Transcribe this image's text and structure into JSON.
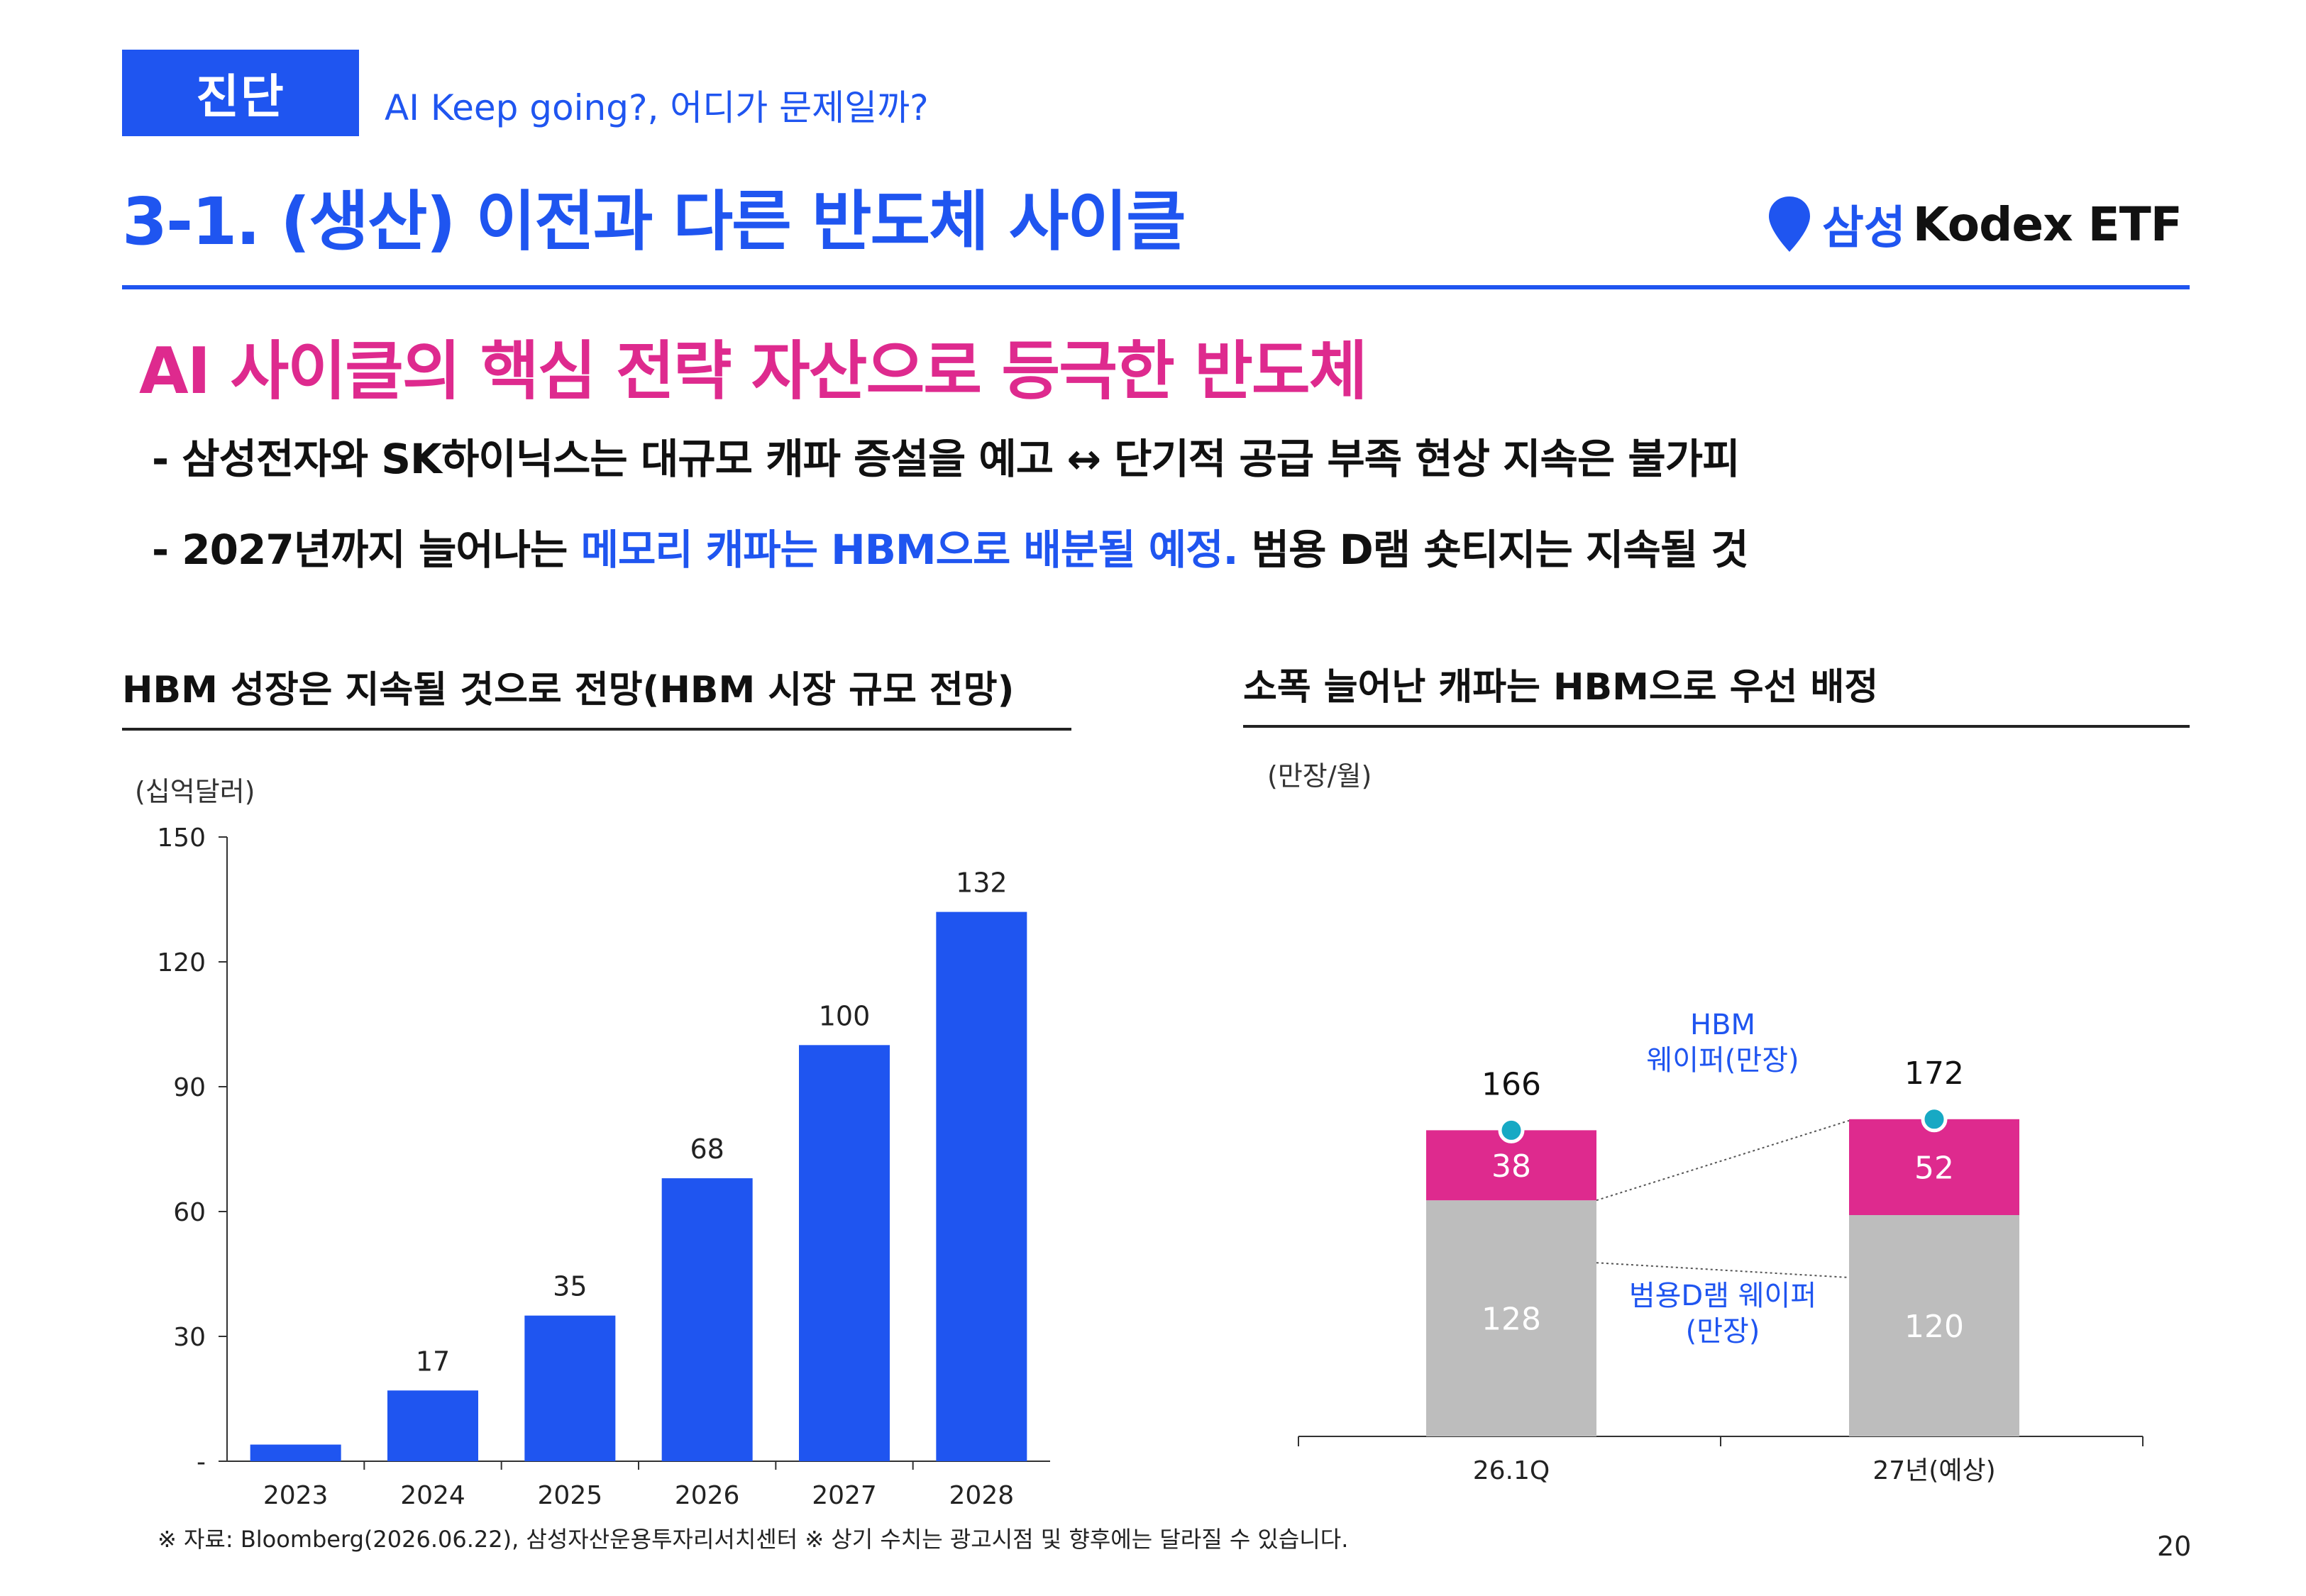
{
  "header": {
    "tag": "진단",
    "tag_subtitle": "AI Keep going?, 어디가 문제일까?",
    "page_title": "3-1. (생산) 이전과 다른 반도체 사이클",
    "logo_samsung": "삼성",
    "logo_product": "Kodex ETF"
  },
  "headline": "AI 사이클의 핵심 전략 자산으로 등극한 반도체",
  "bullets": {
    "b1": "- 삼성전자와 SK하이닉스는 대규모 캐파 증설을 예고 ↔ 단기적 공급 부족 현상 지속은 불가피",
    "b2_prefix": "- 2027년까지 늘어나는 ",
    "b2_highlight": "메모리 캐파는 HBM으로 배분될 예정.",
    "b2_suffix": " 범용 D램 숏티지는 지속될 것"
  },
  "colors": {
    "accent_blue": "#1f55f0",
    "accent_pink": "#de2a8e",
    "bar_gray": "#bdbdbd",
    "marker_teal": "#17a9c4"
  },
  "left_chart": {
    "section_title": "HBM 성장은 지속될 것으로 전망(HBM 시장 규모 전망)",
    "unit": "(십억달러)"
  },
  "right_chart": {
    "section_title": "소폭 늘어난 캐파는 HBM으로 우선 배정",
    "unit": "(만장/월)",
    "hbm_label_line1": "HBM",
    "hbm_label_line2": "웨이퍼(만장)",
    "dram_label_line1": "범용D램 웨이퍼",
    "dram_label_line2": "(만장)"
  },
  "chart_data": [
    {
      "type": "bar",
      "categories": [
        "2023",
        "2024",
        "2025",
        "2026",
        "2027",
        "2028"
      ],
      "values": [
        4,
        17,
        35,
        68,
        100,
        132
      ],
      "data_labels": [
        "",
        "17",
        "35",
        "68",
        "100",
        "132"
      ],
      "title": "HBM 성장은 지속될 것으로 전망(HBM 시장 규모 전망)",
      "ylabel": "(십억달러)",
      "ylim": [
        0,
        150
      ],
      "yticks": [
        "-",
        "30",
        "60",
        "90",
        "120",
        "150"
      ],
      "grid": false
    },
    {
      "type": "bar",
      "stacked": true,
      "categories": [
        "26.1Q",
        "27년(예상)"
      ],
      "series": [
        {
          "name": "범용D램 웨이퍼(만장)",
          "values": [
            128,
            120
          ],
          "color": "#bdbdbd"
        },
        {
          "name": "HBM 웨이퍼(만장)",
          "values": [
            38,
            52
          ],
          "color": "#de2a8e"
        }
      ],
      "totals": [
        166,
        172
      ],
      "title": "소폭 늘어난 캐파는 HBM으로 우선 배정",
      "ylabel": "(만장/월)",
      "grid": false
    }
  ],
  "footer": {
    "footnote": "※ 자료: Bloomberg(2026.06.22), 삼성자산운용투자리서치센터 ※ 상기 수치는 광고시점 및 향후에는 달라질 수 있습니다.",
    "page_number": "20"
  }
}
